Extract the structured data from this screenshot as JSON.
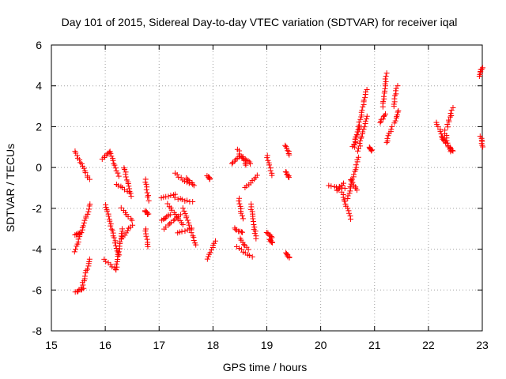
{
  "chart_data": {
    "type": "scatter",
    "title": "Day 101 of 2015, Sidereal Day-to-day VTEC variation (SDTVAR) for receiver iqal",
    "xlabel": "GPS time / hours",
    "ylabel": "SDTVAR / TECUs",
    "xlim": [
      15,
      23
    ],
    "ylim": [
      -8,
      6
    ],
    "xticks": [
      15,
      16,
      17,
      18,
      19,
      20,
      21,
      22,
      23
    ],
    "yticks": [
      -8,
      -6,
      -4,
      -2,
      0,
      2,
      4,
      6
    ],
    "grid": true,
    "marker": "+",
    "color": "#ff0000",
    "segments": [
      {
        "x0": 15.44,
        "x1": 15.7,
        "y0": 0.8,
        "y1": -0.6
      },
      {
        "x0": 15.44,
        "x1": 15.55,
        "y0": -3.3,
        "y1": -3.2
      },
      {
        "x0": 15.44,
        "x1": 15.72,
        "y0": -4.1,
        "y1": -1.8
      },
      {
        "x0": 15.45,
        "x1": 15.6,
        "y0": -6.1,
        "y1": -5.9
      },
      {
        "x0": 15.55,
        "x1": 15.72,
        "y0": -6.0,
        "y1": -4.5
      },
      {
        "x0": 15.95,
        "x1": 16.1,
        "y0": 0.4,
        "y1": 0.8
      },
      {
        "x0": 16.1,
        "x1": 16.25,
        "y0": 0.7,
        "y1": -0.4
      },
      {
        "x0": 15.98,
        "x1": 16.2,
        "y0": -4.5,
        "y1": -5.0
      },
      {
        "x0": 16.0,
        "x1": 16.25,
        "y0": -1.8,
        "y1": -4.3
      },
      {
        "x0": 16.2,
        "x1": 16.32,
        "y0": -5.0,
        "y1": -3.0
      },
      {
        "x0": 16.2,
        "x1": 16.45,
        "y0": -0.8,
        "y1": -1.2
      },
      {
        "x0": 16.3,
        "x1": 16.5,
        "y0": -2.0,
        "y1": -2.6
      },
      {
        "x0": 16.3,
        "x1": 16.5,
        "y0": -3.5,
        "y1": -2.8
      },
      {
        "x0": 16.35,
        "x1": 16.48,
        "y0": 0.0,
        "y1": -1.4
      },
      {
        "x0": 16.75,
        "x1": 16.8,
        "y0": -0.6,
        "y1": -1.6
      },
      {
        "x0": 16.73,
        "x1": 16.8,
        "y0": -2.1,
        "y1": -2.3
      },
      {
        "x0": 16.75,
        "x1": 16.8,
        "y0": -3.0,
        "y1": -3.9
      },
      {
        "x0": 17.05,
        "x1": 17.3,
        "y0": -1.5,
        "y1": -1.3
      },
      {
        "x0": 17.05,
        "x1": 17.2,
        "y0": -2.6,
        "y1": -2.3
      },
      {
        "x0": 17.1,
        "x1": 17.4,
        "y0": -3.0,
        "y1": -2.3
      },
      {
        "x0": 17.15,
        "x1": 17.45,
        "y0": -1.8,
        "y1": -2.8
      },
      {
        "x0": 17.3,
        "x1": 17.55,
        "y0": -0.3,
        "y1": -0.8
      },
      {
        "x0": 17.3,
        "x1": 17.62,
        "y0": -1.5,
        "y1": -1.7
      },
      {
        "x0": 17.35,
        "x1": 17.6,
        "y0": -3.2,
        "y1": -3.0
      },
      {
        "x0": 17.45,
        "x1": 17.68,
        "y0": -2.0,
        "y1": -3.8
      },
      {
        "x0": 17.5,
        "x1": 17.65,
        "y0": -0.5,
        "y1": -0.9
      },
      {
        "x0": 17.9,
        "x1": 18.05,
        "y0": -4.5,
        "y1": -3.6
      },
      {
        "x0": 17.9,
        "x1": 17.95,
        "y0": -0.4,
        "y1": -0.6
      },
      {
        "x0": 18.35,
        "x1": 18.5,
        "y0": 0.2,
        "y1": 0.6
      },
      {
        "x0": 18.45,
        "x1": 18.62,
        "y0": 0.9,
        "y1": 0.1
      },
      {
        "x0": 18.55,
        "x1": 18.7,
        "y0": 0.5,
        "y1": 0.2
      },
      {
        "x0": 18.4,
        "x1": 18.55,
        "y0": -3.0,
        "y1": -3.2
      },
      {
        "x0": 18.45,
        "x1": 18.72,
        "y0": -3.9,
        "y1": -4.4
      },
      {
        "x0": 18.5,
        "x1": 18.65,
        "y0": -3.5,
        "y1": -4.0
      },
      {
        "x0": 18.48,
        "x1": 18.55,
        "y0": -1.5,
        "y1": -2.5
      },
      {
        "x0": 18.6,
        "x1": 18.82,
        "y0": -1.0,
        "y1": -0.4
      },
      {
        "x0": 18.7,
        "x1": 18.8,
        "y0": -1.8,
        "y1": -3.5
      },
      {
        "x0": 19.0,
        "x1": 19.1,
        "y0": 0.6,
        "y1": -0.4
      },
      {
        "x0": 19.0,
        "x1": 19.1,
        "y0": -3.2,
        "y1": -3.4
      },
      {
        "x0": 19.05,
        "x1": 19.1,
        "y0": -3.5,
        "y1": -3.7
      },
      {
        "x0": 19.35,
        "x1": 19.42,
        "y0": 1.1,
        "y1": 0.6
      },
      {
        "x0": 19.35,
        "x1": 19.42,
        "y0": -0.2,
        "y1": -0.5
      },
      {
        "x0": 19.35,
        "x1": 19.42,
        "y0": -4.2,
        "y1": -4.4
      },
      {
        "x0": 20.15,
        "x1": 20.45,
        "y0": -0.9,
        "y1": -1.0
      },
      {
        "x0": 20.3,
        "x1": 20.42,
        "y0": -1.1,
        "y1": -0.8
      },
      {
        "x0": 20.4,
        "x1": 20.55,
        "y0": -1.2,
        "y1": -2.5
      },
      {
        "x0": 20.5,
        "x1": 20.7,
        "y0": -1.5,
        "y1": 0.5
      },
      {
        "x0": 20.55,
        "x1": 20.68,
        "y0": -0.6,
        "y1": -1.1
      },
      {
        "x0": 20.6,
        "x1": 20.72,
        "y0": 1.0,
        "y1": 2.0
      },
      {
        "x0": 20.62,
        "x1": 20.85,
        "y0": 1.0,
        "y1": 3.8
      },
      {
        "x0": 20.7,
        "x1": 20.85,
        "y0": 0.8,
        "y1": 2.5
      },
      {
        "x0": 20.9,
        "x1": 20.95,
        "y0": 1.0,
        "y1": 0.8
      },
      {
        "x0": 21.1,
        "x1": 21.2,
        "y0": 2.2,
        "y1": 2.6
      },
      {
        "x0": 21.15,
        "x1": 21.22,
        "y0": 3.0,
        "y1": 4.6
      },
      {
        "x0": 21.22,
        "x1": 21.32,
        "y0": 1.2,
        "y1": 2.0
      },
      {
        "x0": 21.35,
        "x1": 21.42,
        "y0": 3.0,
        "y1": 4.0
      },
      {
        "x0": 21.38,
        "x1": 21.45,
        "y0": 2.2,
        "y1": 2.8
      },
      {
        "x0": 22.15,
        "x1": 22.3,
        "y0": 2.2,
        "y1": 1.3
      },
      {
        "x0": 22.3,
        "x1": 22.4,
        "y0": 1.8,
        "y1": 0.8
      },
      {
        "x0": 22.35,
        "x1": 22.45,
        "y0": 2.0,
        "y1": 2.9
      },
      {
        "x0": 22.38,
        "x1": 22.45,
        "y0": 1.0,
        "y1": 0.8
      },
      {
        "x0": 22.25,
        "x1": 22.32,
        "y0": 1.5,
        "y1": 1.2
      },
      {
        "x0": 22.95,
        "x1": 23.0,
        "y0": 4.5,
        "y1": 4.9
      },
      {
        "x0": 22.97,
        "x1": 23.0,
        "y0": 1.5,
        "y1": 1.0
      }
    ]
  }
}
